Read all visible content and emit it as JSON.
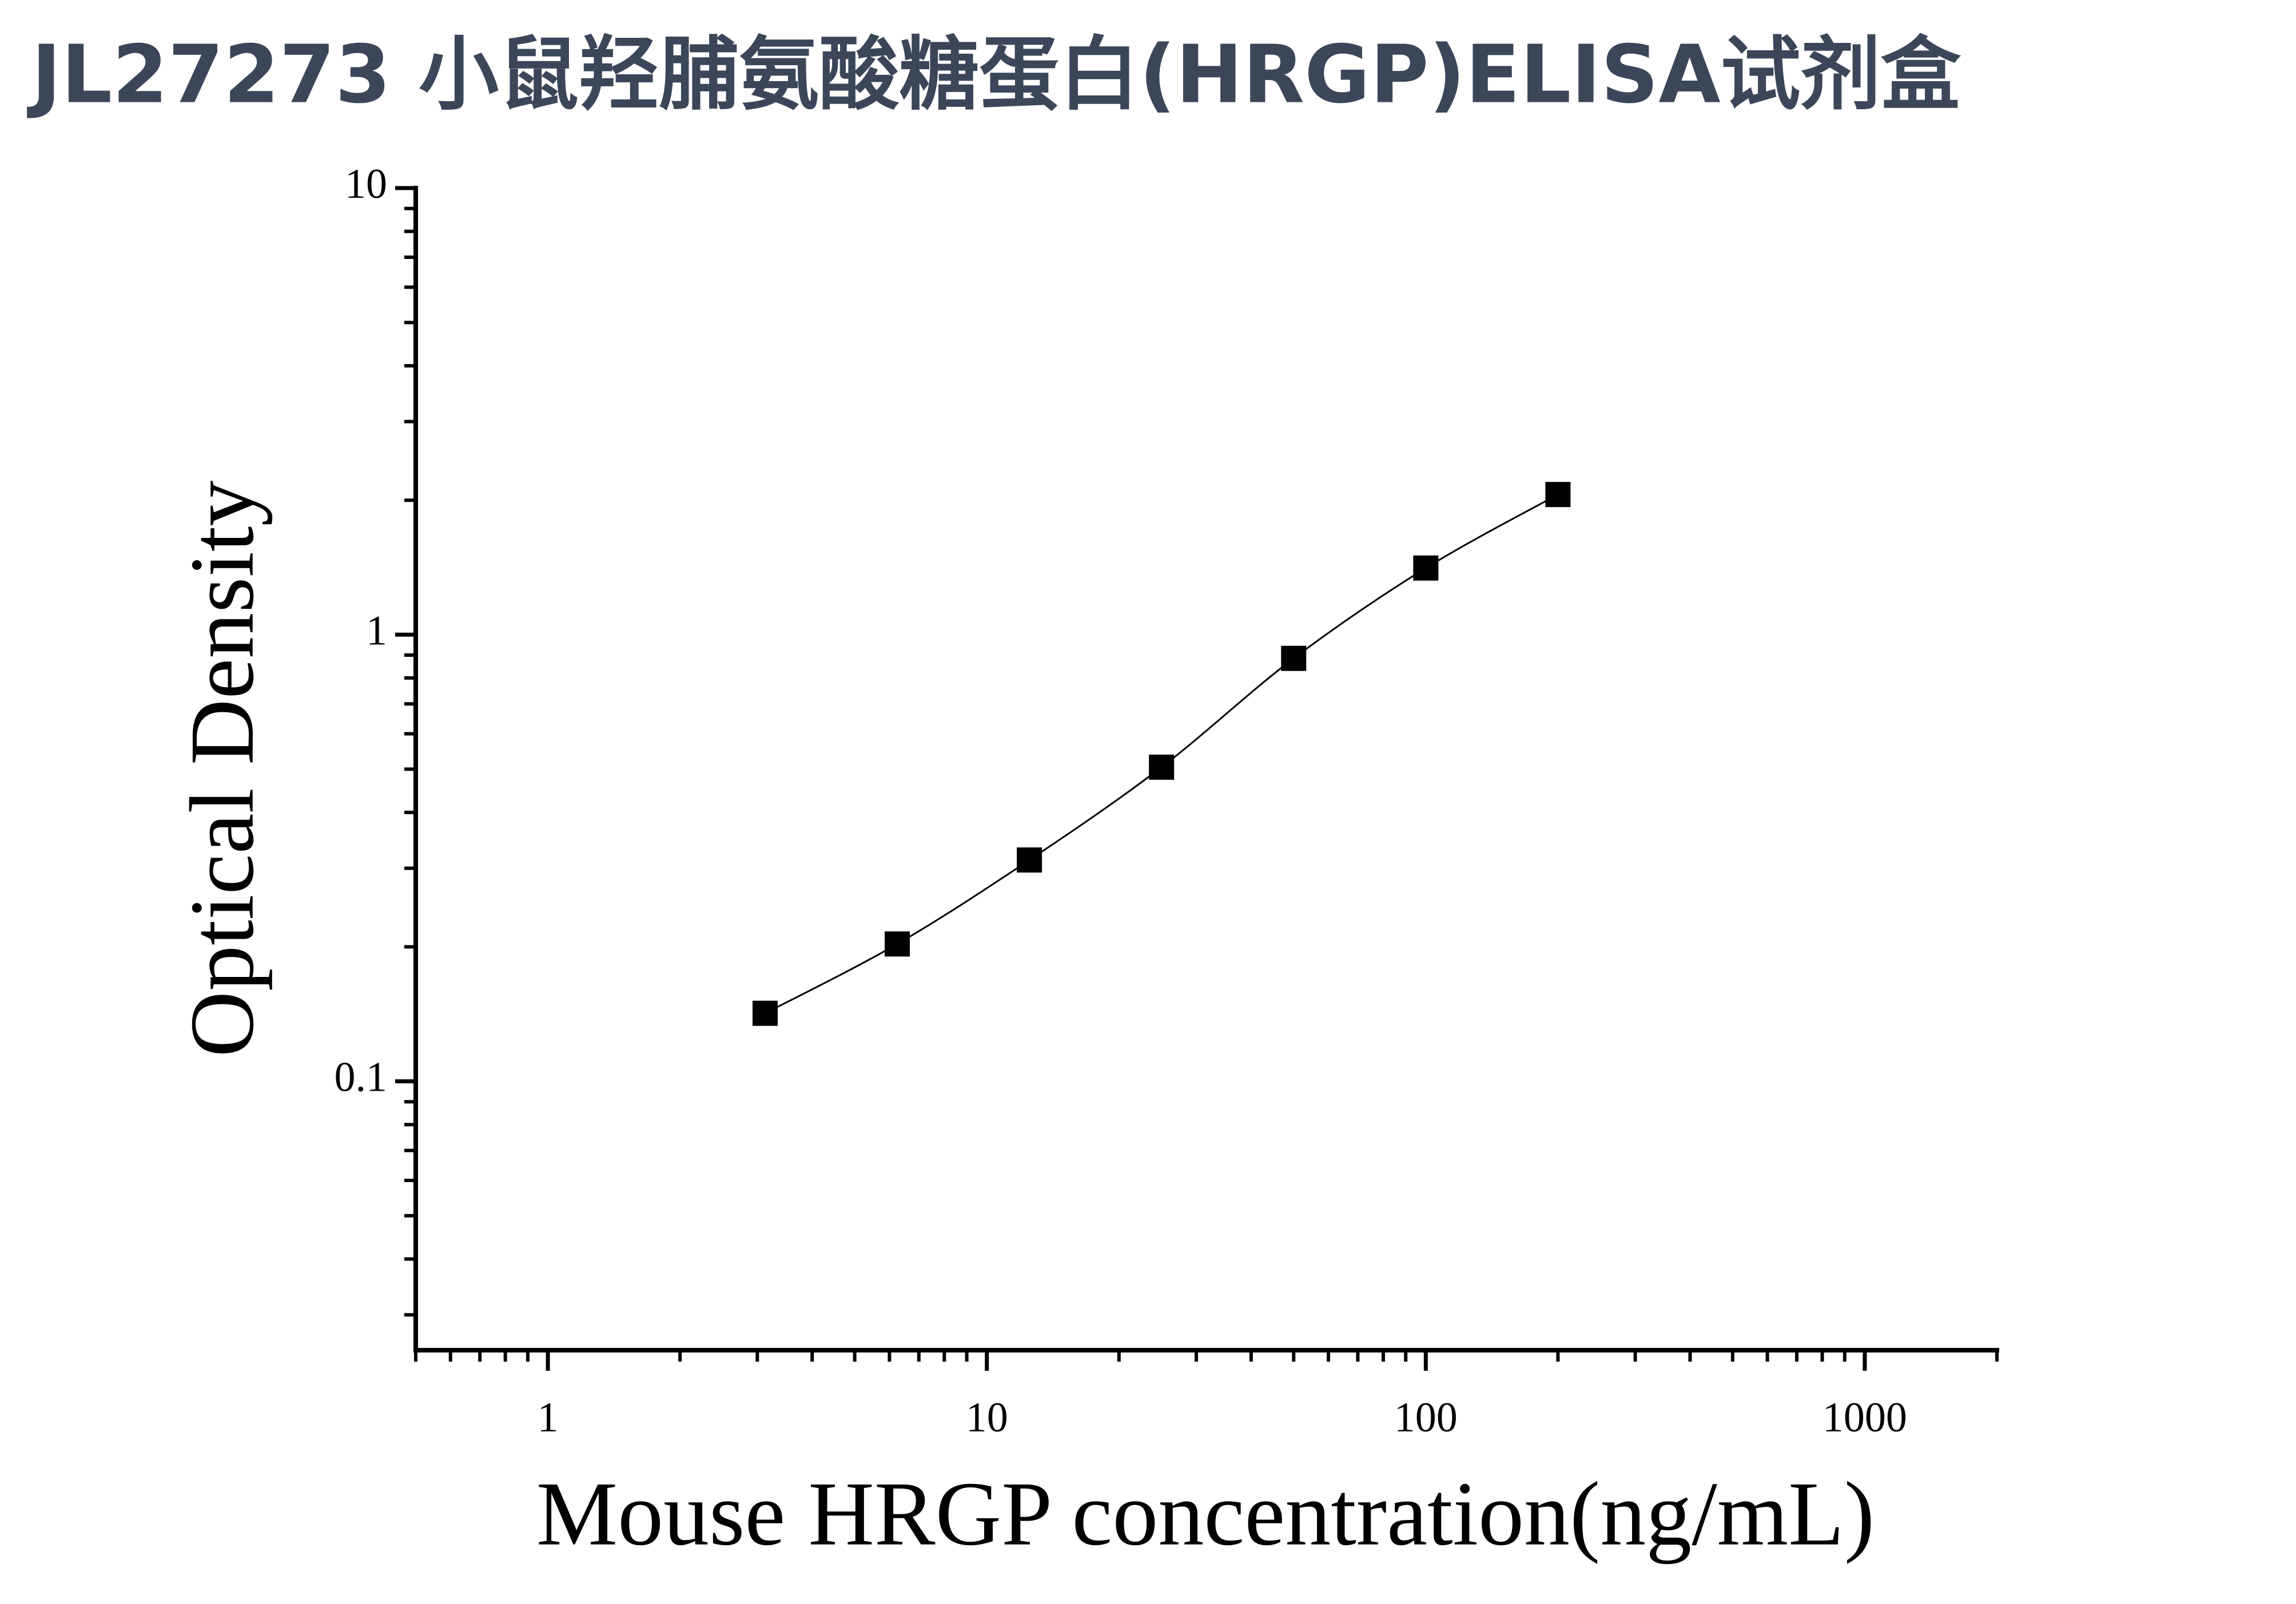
{
  "chart_data": {
    "type": "scatter",
    "title": "JL27273 小鼠羟脯氨酸糖蛋白(HRGP)ELISA试剂盒",
    "xlabel": "Mouse HRGP concentration(ng/mL)",
    "ylabel": "Optical Density",
    "x": [
      3.125,
      6.25,
      12.5,
      25,
      50,
      100,
      200
    ],
    "series": [
      {
        "color": "#000000",
        "values": [
          0.142,
          0.203,
          0.313,
          0.505,
          0.885,
          1.41,
          2.06
        ]
      }
    ],
    "xscale": "log",
    "yscale": "log",
    "xlim": [
      0.5,
      2000
    ],
    "ylim": [
      0.025,
      10
    ],
    "xticks": [
      1,
      10,
      100,
      1000
    ],
    "yticks": [
      0.1,
      1,
      10
    ],
    "grid": false
  }
}
